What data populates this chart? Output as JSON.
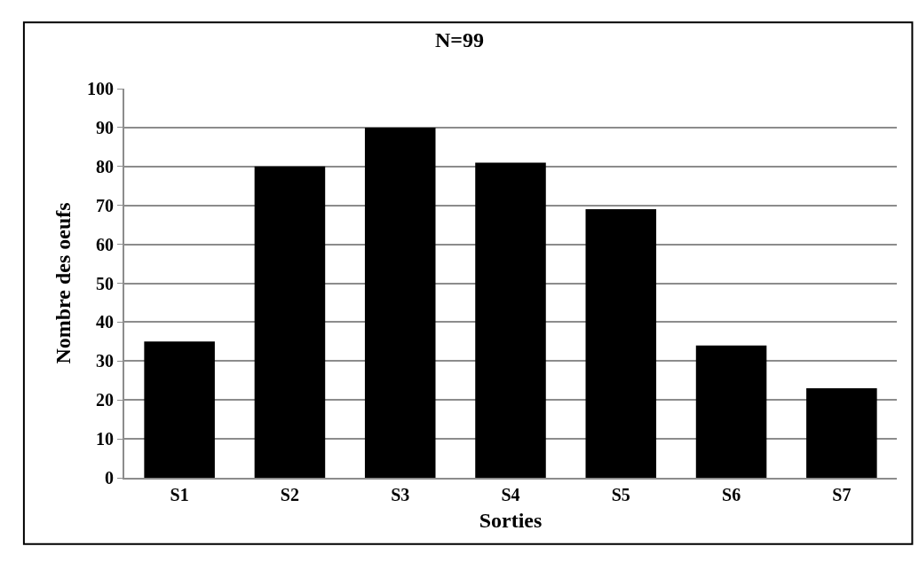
{
  "chart_data": {
    "type": "bar",
    "title": "N=99",
    "xlabel": "Sorties",
    "ylabel": "Nombre des oeufs",
    "categories": [
      "S1",
      "S2",
      "S3",
      "S4",
      "S5",
      "S6",
      "S7"
    ],
    "values": [
      35,
      80,
      90,
      81,
      69,
      34,
      23
    ],
    "color": "#000000",
    "ylim": [
      0,
      100
    ],
    "yticks": [
      0,
      10,
      20,
      30,
      40,
      50,
      60,
      70,
      80,
      90,
      100
    ],
    "grid": "y"
  }
}
